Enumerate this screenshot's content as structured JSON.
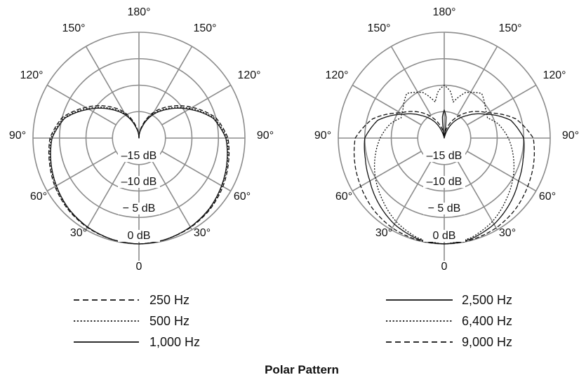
{
  "title": "Polar Pattern",
  "chart_data": [
    {
      "type": "polar",
      "angle_ticks": [
        "180°",
        "150°",
        "150°",
        "120°",
        "120°",
        "90°",
        "90°",
        "60°",
        "60°",
        "30°",
        "30°",
        "0"
      ],
      "radial_ticks": [
        "–15 dB",
        "–10 dB",
        "− 5 dB",
        "0 dB"
      ],
      "radial_range_db": [
        -20,
        0
      ],
      "angle_zero": "bottom",
      "symmetric": true,
      "angles": [
        0,
        15,
        30,
        45,
        60,
        75,
        90,
        105,
        120,
        135,
        150,
        165,
        180
      ],
      "series": [
        {
          "name": "250 Hz",
          "style": "dashed",
          "values": [
            0,
            -0.2,
            -0.5,
            -1.0,
            -1.7,
            -2.5,
            -3.2,
            -5.0,
            -8.4,
            -11.5,
            -14.3,
            -17.5,
            -20
          ]
        },
        {
          "name": "500 Hz",
          "style": "dotted",
          "values": [
            0,
            -0.2,
            -0.6,
            -1.1,
            -1.9,
            -2.7,
            -3.4,
            -5.3,
            -8.8,
            -12.0,
            -14.7,
            -17.8,
            -20
          ]
        },
        {
          "name": "1,000 Hz",
          "style": "solid",
          "values": [
            0,
            -0.2,
            -0.6,
            -1.2,
            -2.0,
            -2.8,
            -3.6,
            -5.5,
            -9.1,
            -12.3,
            -15.0,
            -18.0,
            -20
          ]
        }
      ]
    },
    {
      "type": "polar",
      "angle_ticks": [
        "180°",
        "150°",
        "150°",
        "120°",
        "120°",
        "90°",
        "90°",
        "60°",
        "60°",
        "30°",
        "30°",
        "0"
      ],
      "radial_ticks": [
        "–15 dB",
        "–10 dB",
        "− 5 dB",
        "0 dB"
      ],
      "radial_range_db": [
        -20,
        0
      ],
      "angle_zero": "bottom",
      "symmetric": true,
      "series": [
        {
          "name": "2,500 Hz",
          "style": "solid",
          "angles": [
            0,
            15,
            30,
            45,
            60,
            75,
            90,
            105,
            120,
            135,
            150,
            165,
            171,
            175,
            180
          ],
          "values": [
            0,
            -0.3,
            -1.2,
            -2.5,
            -3.8,
            -4.6,
            -5.0,
            -7.0,
            -11.0,
            -14.0,
            -16.5,
            -19.5,
            -20,
            -16,
            -14.7
          ]
        },
        {
          "name": "6,400 Hz",
          "style": "dotted",
          "angles": [
            0,
            15,
            30,
            45,
            60,
            75,
            90,
            105,
            115,
            125,
            140,
            155,
            166,
            173,
            180
          ],
          "values": [
            0,
            -0.5,
            -1.8,
            -3.5,
            -5.0,
            -6.5,
            -7.9,
            -9.5,
            -11.0,
            -10.5,
            -9.0,
            -10.5,
            -13.0,
            -11.0,
            -10.0
          ]
        },
        {
          "name": "9,000 Hz",
          "style": "dashed",
          "angles": [
            0,
            15,
            30,
            45,
            60,
            75,
            90,
            105,
            120,
            135,
            150,
            165,
            180
          ],
          "values": [
            0,
            -0.1,
            -0.4,
            -1.0,
            -1.8,
            -2.5,
            -3.2,
            -6.0,
            -10.5,
            -13.0,
            -15.5,
            -18.0,
            -20
          ]
        }
      ]
    }
  ],
  "colors": {
    "grid": "#8c8c8c",
    "curve": "#111111"
  }
}
